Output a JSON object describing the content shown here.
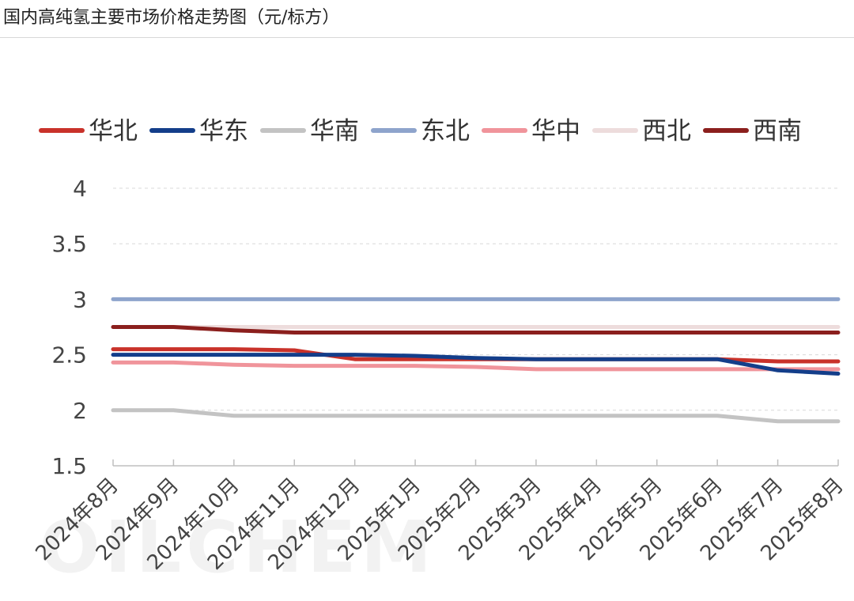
{
  "page": {
    "title": "国内高纯氢主要市场价格走势图（元/标方）",
    "watermark": "OILCHEM"
  },
  "chart_data": {
    "type": "line",
    "title": "国内高纯氢主要市场价格走势图（元/标方）",
    "xlabel": "",
    "ylabel": "",
    "ylim": [
      1.5,
      4
    ],
    "yticks": [
      "4",
      "3.5",
      "3",
      "2.5",
      "2",
      "1.5"
    ],
    "grid": true,
    "legend_position": "top",
    "categories": [
      "2024年8月",
      "2024年9月",
      "2024年10月",
      "2024年11月",
      "2024年12月",
      "2025年1月",
      "2025年2月",
      "2025年3月",
      "2025年4月",
      "2025年5月",
      "2025年6月",
      "2025年7月",
      "2025年8月"
    ],
    "series": [
      {
        "name": "华北",
        "color": "#c9322a",
        "values": [
          2.55,
          2.55,
          2.55,
          2.54,
          2.46,
          2.46,
          2.46,
          2.46,
          2.46,
          2.46,
          2.46,
          2.44,
          2.44
        ]
      },
      {
        "name": "华东",
        "color": "#133e8a",
        "values": [
          2.5,
          2.5,
          2.5,
          2.5,
          2.5,
          2.49,
          2.47,
          2.46,
          2.46,
          2.46,
          2.46,
          2.36,
          2.33
        ]
      },
      {
        "name": "华南",
        "color": "#c3c3c3",
        "values": [
          2.0,
          2.0,
          1.95,
          1.95,
          1.95,
          1.95,
          1.95,
          1.95,
          1.95,
          1.95,
          1.95,
          1.9,
          1.9
        ]
      },
      {
        "name": "东北",
        "color": "#8ea4cc",
        "values": [
          3.0,
          3.0,
          3.0,
          3.0,
          3.0,
          3.0,
          3.0,
          3.0,
          3.0,
          3.0,
          3.0,
          3.0,
          3.0
        ]
      },
      {
        "name": "华中",
        "color": "#f0949b",
        "values": [
          2.43,
          2.43,
          2.41,
          2.4,
          2.4,
          2.4,
          2.39,
          2.37,
          2.37,
          2.37,
          2.37,
          2.37,
          2.37
        ]
      },
      {
        "name": "西北",
        "color": "#eddcdc",
        "values": [
          2.75,
          2.75,
          2.75,
          2.75,
          2.75,
          2.75,
          2.75,
          2.75,
          2.75,
          2.75,
          2.75,
          2.75,
          2.75
        ]
      },
      {
        "name": "西南",
        "color": "#8b1f1d",
        "values": [
          2.75,
          2.75,
          2.72,
          2.7,
          2.7,
          2.7,
          2.7,
          2.7,
          2.7,
          2.7,
          2.7,
          2.7,
          2.7
        ]
      }
    ]
  }
}
